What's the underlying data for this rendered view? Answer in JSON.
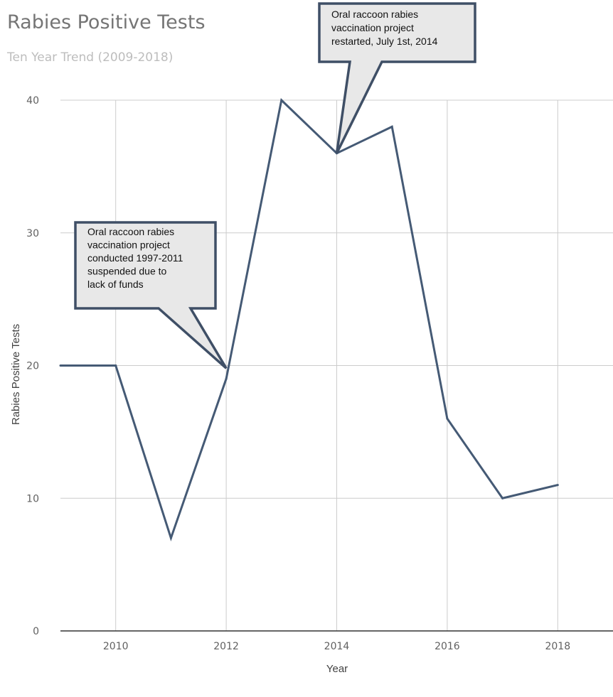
{
  "chart_data": {
    "type": "line",
    "title": "Rabies Positive Tests",
    "subtitle": "Ten Year Trend (2009-2018)",
    "xlabel": "Year",
    "ylabel": "Rabies Positive Tests",
    "x": [
      2009,
      2010,
      2011,
      2012,
      2013,
      2014,
      2015,
      2016,
      2017,
      2018
    ],
    "series": [
      {
        "values": [
          20,
          20,
          7,
          19,
          40,
          36,
          38,
          16,
          10,
          11
        ],
        "color": "#455a75"
      }
    ],
    "x_ticks": [
      "2010",
      "2012",
      "2014",
      "2016",
      "2018"
    ],
    "y_ticks": [
      "0",
      "10",
      "20",
      "30",
      "40"
    ],
    "xlim": [
      2009,
      2019
    ],
    "ylim": [
      0,
      40
    ],
    "grid": true,
    "annotations": [
      {
        "lines": [
          "Oral raccoon rabies",
          "vaccination project",
          "conducted 1997-2011",
          "suspended due to",
          "lack of funds"
        ],
        "target": {
          "x": 2012,
          "y": 19.8
        }
      },
      {
        "lines": [
          "Oral raccoon rabies",
          "vaccination project",
          "restarted, July 1st, 2014"
        ],
        "target": {
          "x": 2014,
          "y": 36
        }
      }
    ]
  },
  "colors": {
    "grid": "#cccccc",
    "axis": "#333333",
    "line": "#455a75",
    "callout_fill": "#e8e8e8",
    "callout_border": "#3f4f66"
  }
}
